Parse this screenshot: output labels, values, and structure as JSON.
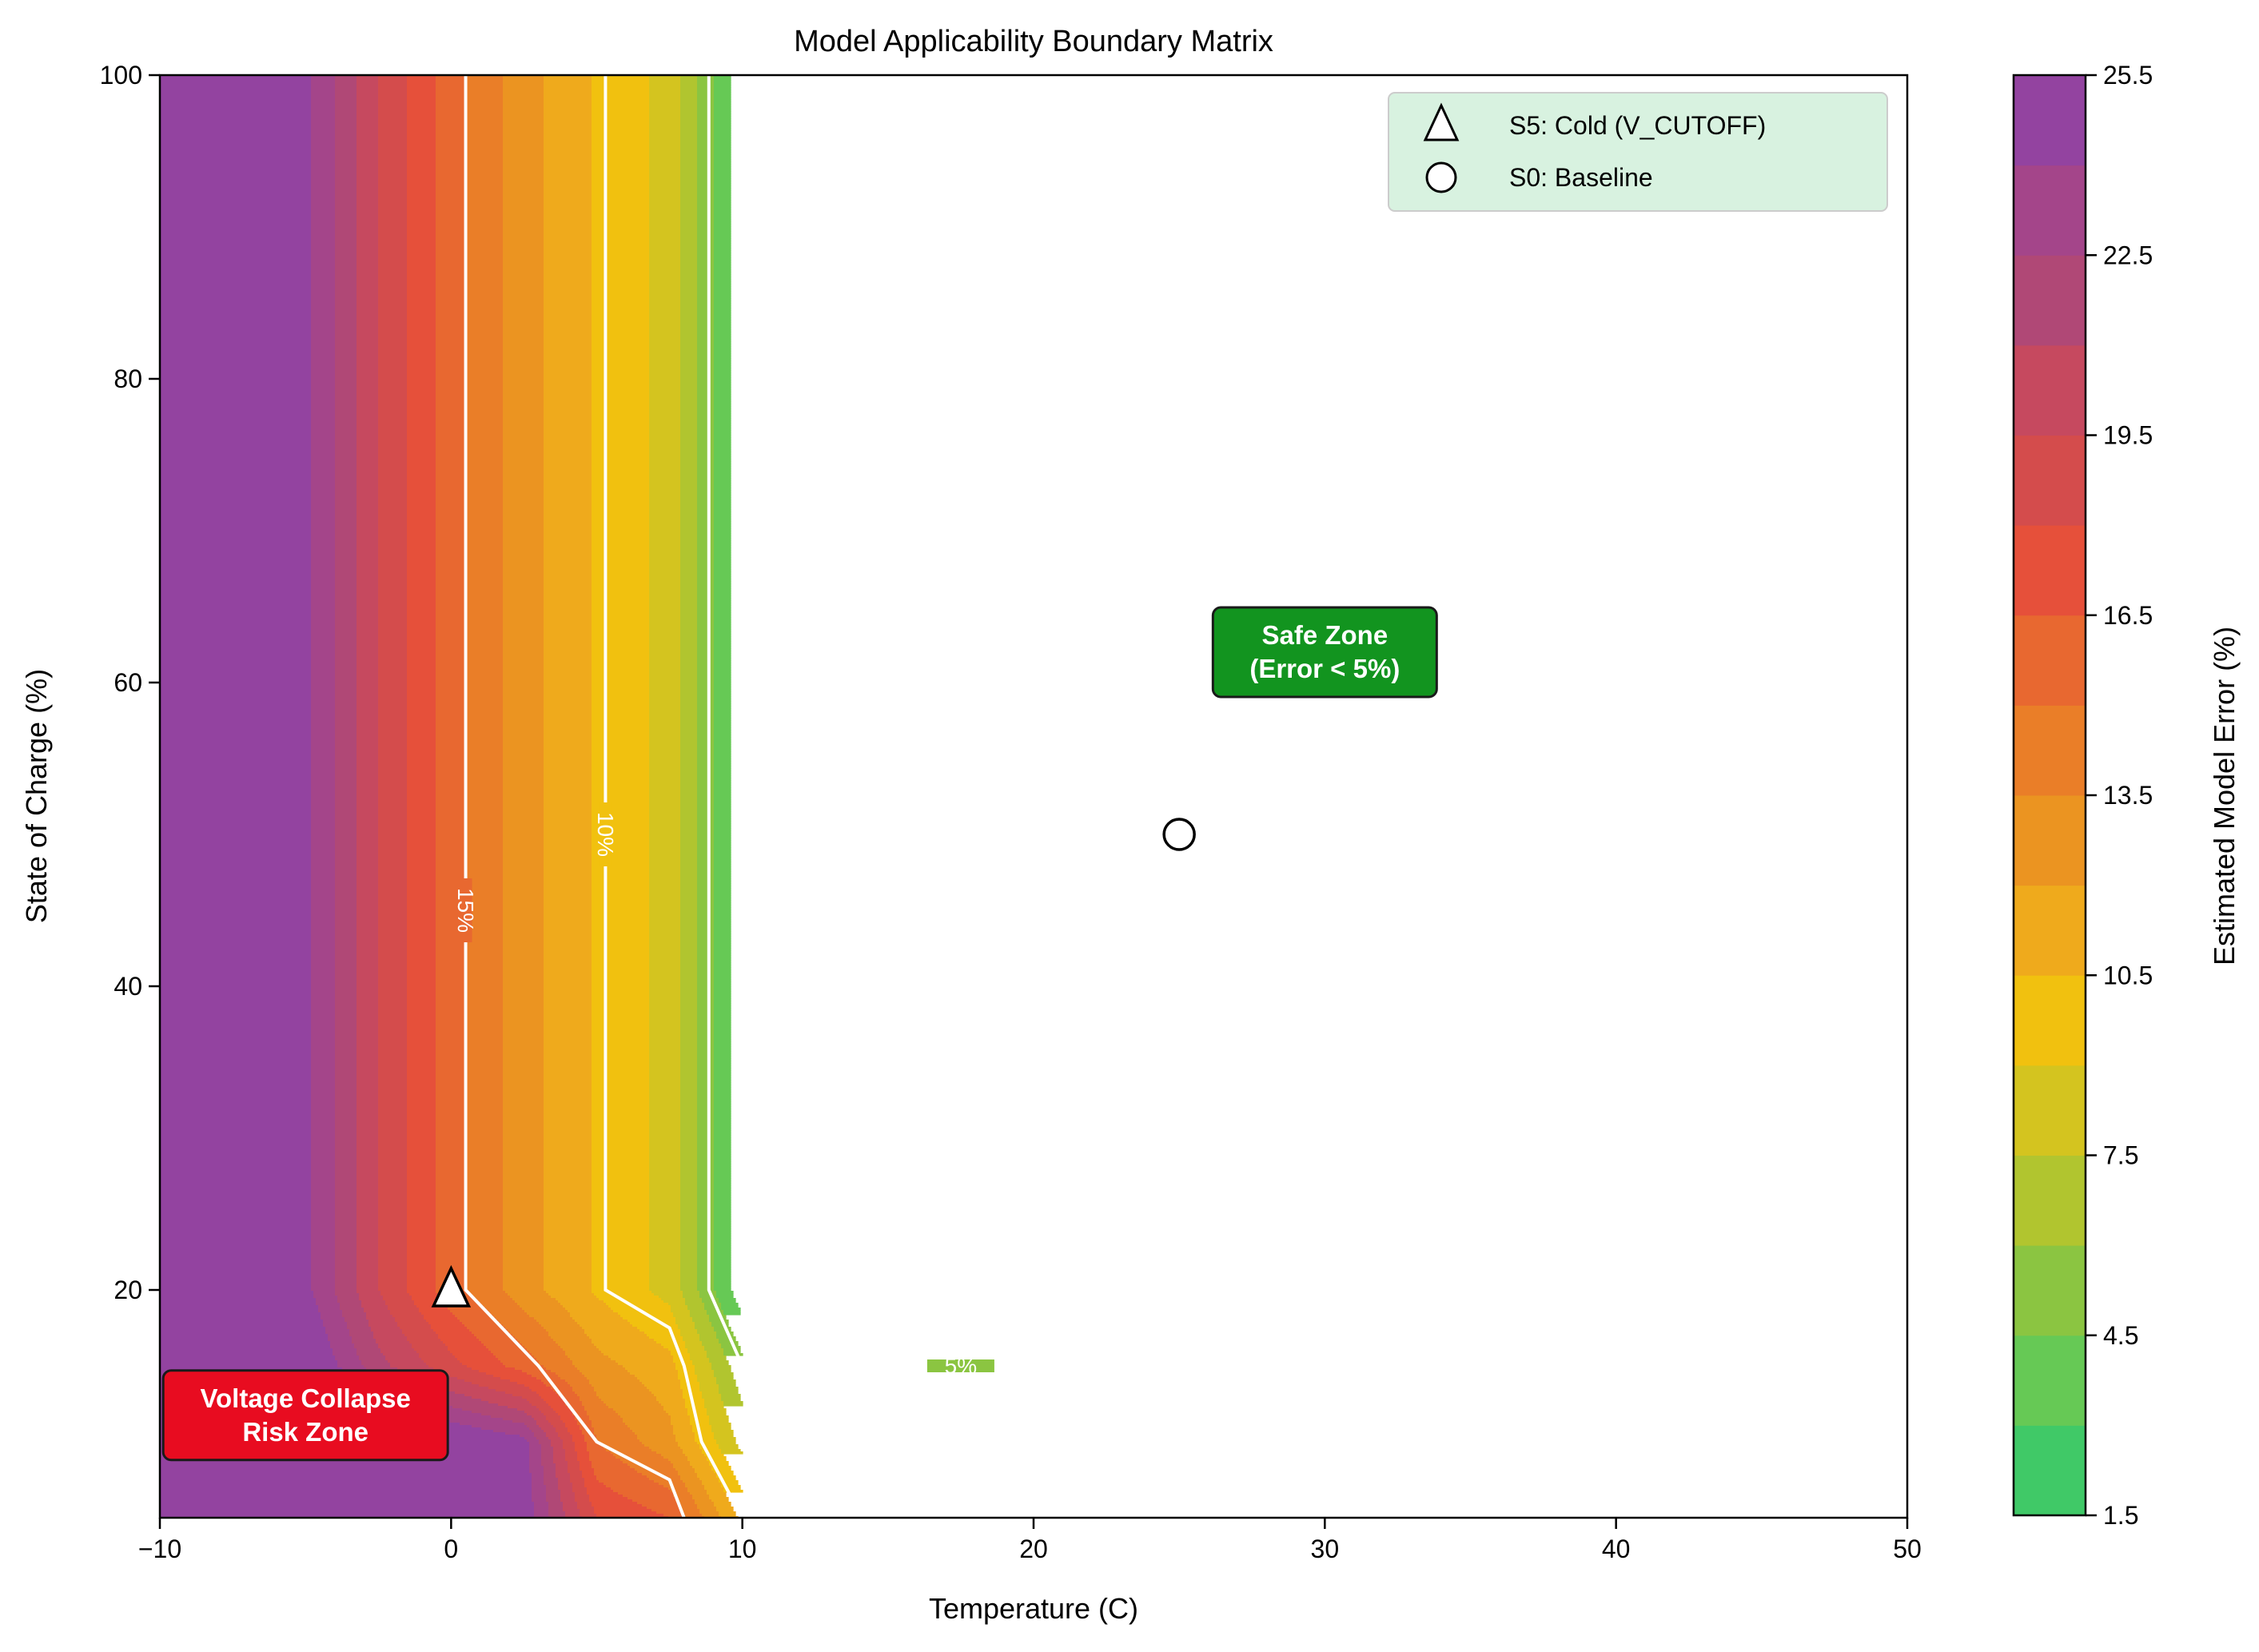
{
  "chart_data": {
    "type": "contourf",
    "title": "Model Applicability Boundary Matrix",
    "xlabel": "Temperature (C)",
    "ylabel": "State of Charge (%)",
    "xlim": [
      -10,
      50
    ],
    "ylim": [
      5,
      100
    ],
    "xticks": [
      -10,
      0,
      10,
      20,
      30,
      40,
      50
    ],
    "xtick_labels": [
      "−10",
      "0",
      "10",
      "20",
      "30",
      "40",
      "50"
    ],
    "yticks": [
      20,
      40,
      60,
      80,
      100
    ],
    "ytick_labels": [
      "20",
      "40",
      "60",
      "80",
      "100"
    ],
    "grid": false,
    "grid_x": [
      -10,
      -7.5,
      -5,
      -2.5,
      0,
      2.5,
      5,
      7.5,
      10,
      50
    ],
    "grid_y": [
      5,
      10,
      15,
      20,
      100
    ],
    "z": [
      [
        30,
        30,
        30,
        30,
        28,
        25,
        18,
        16.5,
        10.05,
        10.05
      ],
      [
        30,
        30,
        30,
        28,
        26,
        24.6,
        15,
        12.5,
        7.0,
        7.0
      ],
      [
        30,
        28,
        26,
        21.5,
        18.5,
        15.8,
        12.5,
        11,
        4.95,
        4.95
      ],
      [
        30,
        27,
        24.45,
        19.5,
        15.66,
        12.66,
        10.3,
        8.5,
        2.0,
        2.0
      ],
      [
        30,
        27,
        24.45,
        19.5,
        15.66,
        12.66,
        10.3,
        8.5,
        2.0,
        2.0
      ]
    ],
    "levels": [
      1.5,
      3,
      4.5,
      6,
      7.5,
      9,
      10.5,
      12,
      13.5,
      15,
      16.5,
      18,
      19.5,
      21,
      22.5,
      24,
      25.5
    ],
    "band_colors": [
      "#40c967",
      "#66c955",
      "#8bc541",
      "#b1c52f",
      "#d4c41f",
      "#f1c10f",
      "#efaa1c",
      "#eb9421",
      "#ea7e28",
      "#e86830",
      "#e6503a",
      "#d44c4c",
      "#c6495f",
      "#b04876",
      "#a4458a",
      "#9343a0"
    ],
    "contour_lines": [
      {
        "label": "15%",
        "points": [
          [
            0.5,
            100
          ],
          [
            0.5,
            20
          ],
          [
            3,
            15
          ],
          [
            5,
            10
          ],
          [
            7.5,
            7.5
          ],
          [
            8,
            5
          ]
        ],
        "label_at": [
          0.5,
          45
        ]
      },
      {
        "label": "10%",
        "points": [
          [
            5.3,
            100
          ],
          [
            5.3,
            20
          ],
          [
            7.5,
            17.5
          ],
          [
            8,
            15
          ],
          [
            8.6,
            10
          ],
          [
            10,
            5
          ]
        ],
        "label_at": [
          5.3,
          50
        ]
      },
      {
        "label": "5%",
        "points": [
          [
            8.85,
            100
          ],
          [
            8.85,
            20
          ],
          [
            10,
            15
          ],
          [
            50,
            15
          ]
        ],
        "label_at": [
          17.5,
          15
        ]
      }
    ],
    "colorbar": {
      "label": "Estimated Model Error (%)",
      "ticks": [
        1.5,
        4.5,
        7.5,
        10.5,
        13.5,
        16.5,
        19.5,
        22.5,
        25.5
      ],
      "tick_labels": [
        "1.5",
        "4.5",
        "7.5",
        "10.5",
        "13.5",
        "16.5",
        "19.5",
        "22.5",
        "25.5"
      ]
    },
    "markers": [
      {
        "name": "S5: Cold (V_CUTOFF)",
        "shape": "triangle",
        "x": 0,
        "y": 20
      },
      {
        "name": "S0: Baseline",
        "shape": "circle",
        "x": 25,
        "y": 50
      }
    ],
    "legend_position": "top-right",
    "annotations": [
      {
        "lines": [
          "Voltage Collapse",
          "Risk Zone"
        ],
        "x": -5,
        "y": 11.75,
        "box_color": "#e80c20"
      },
      {
        "lines": [
          "Safe Zone",
          "(Error < 5%)"
        ],
        "x": 30,
        "y": 62,
        "box_color": "#12941f"
      }
    ]
  }
}
